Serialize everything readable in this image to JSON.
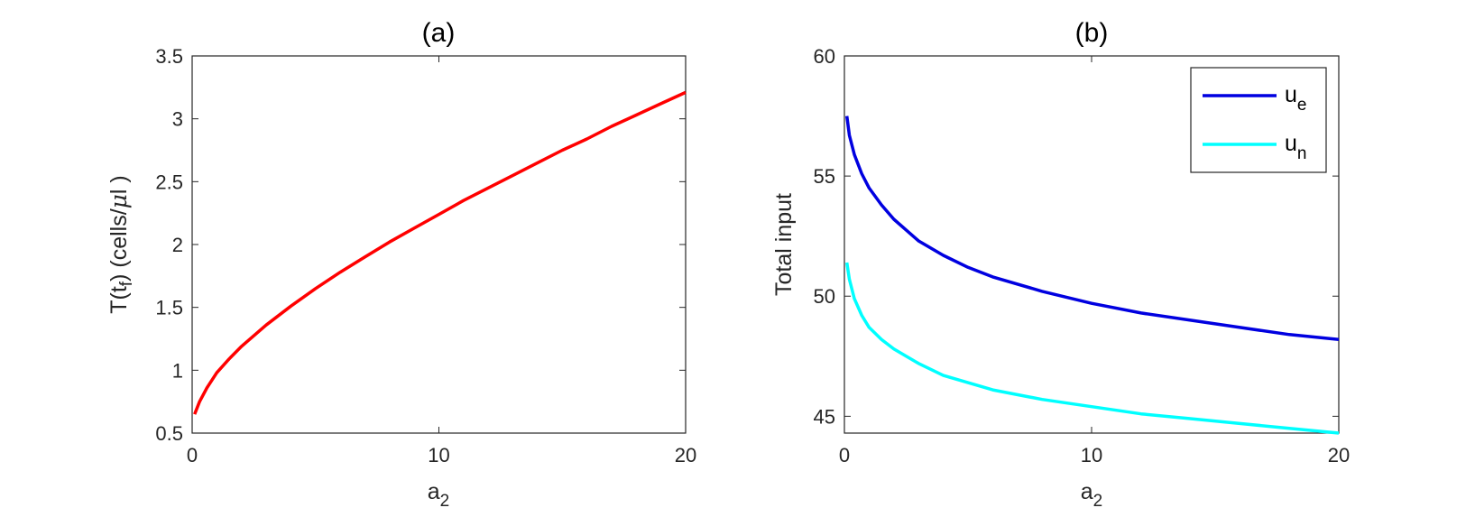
{
  "chart_data": [
    {
      "type": "line",
      "title": "(a)",
      "xlabel": "a",
      "xlabel_sub": "2",
      "ylabel_parts": [
        "T(t",
        "f",
        ") (cells/",
        "μ",
        "l )"
      ],
      "xlim": [
        0,
        20
      ],
      "ylim": [
        0.5,
        3.5
      ],
      "xticks": [
        0,
        10,
        20
      ],
      "xtick_labels": [
        "0",
        "10",
        "20"
      ],
      "yticks": [
        0.5,
        1,
        1.5,
        2,
        2.5,
        3,
        3.5
      ],
      "ytick_labels": [
        "0.5",
        "1",
        "1.5",
        "2",
        "2.5",
        "3",
        "3.5"
      ],
      "grid": false,
      "series": [
        {
          "color": "#ff0000",
          "x": [
            0.1,
            0.3,
            0.6,
            1,
            1.5,
            2,
            3,
            4,
            5,
            6,
            7,
            8,
            9,
            10,
            11,
            12,
            13,
            14,
            15,
            16,
            17,
            18,
            19,
            20
          ],
          "y": [
            0.65,
            0.75,
            0.86,
            0.98,
            1.09,
            1.19,
            1.36,
            1.51,
            1.65,
            1.78,
            1.9,
            2.02,
            2.13,
            2.24,
            2.35,
            2.45,
            2.55,
            2.65,
            2.75,
            2.84,
            2.94,
            3.03,
            3.12,
            3.21
          ]
        }
      ]
    },
    {
      "type": "line",
      "title": "(b)",
      "xlabel": "a",
      "xlabel_sub": "2",
      "ylabel": "Total input",
      "xlim": [
        0,
        20
      ],
      "ylim": [
        44.3,
        60
      ],
      "xticks": [
        0,
        10,
        20
      ],
      "xtick_labels": [
        "0",
        "10",
        "20"
      ],
      "yticks": [
        45,
        50,
        55,
        60
      ],
      "ytick_labels": [
        "45",
        "50",
        "55",
        "60"
      ],
      "grid": false,
      "legend_position": "top-right",
      "series": [
        {
          "name": "u",
          "name_sub": "e",
          "color": "#0000e0",
          "x": [
            0.1,
            0.2,
            0.4,
            0.7,
            1,
            1.5,
            2,
            3,
            4,
            5,
            6,
            8,
            10,
            12,
            14,
            16,
            18,
            20
          ],
          "y": [
            57.5,
            56.7,
            55.9,
            55.1,
            54.5,
            53.8,
            53.2,
            52.3,
            51.7,
            51.2,
            50.8,
            50.2,
            49.7,
            49.3,
            49.0,
            48.7,
            48.4,
            48.2
          ]
        },
        {
          "name": "u",
          "name_sub": "n",
          "color": "#00ffff",
          "x": [
            0.1,
            0.2,
            0.4,
            0.7,
            1,
            1.5,
            2,
            3,
            4,
            5,
            6,
            8,
            10,
            12,
            14,
            16,
            18,
            20
          ],
          "y": [
            51.4,
            50.7,
            49.9,
            49.2,
            48.7,
            48.2,
            47.8,
            47.2,
            46.7,
            46.4,
            46.1,
            45.7,
            45.4,
            45.1,
            44.9,
            44.7,
            44.5,
            44.3
          ]
        }
      ]
    }
  ]
}
